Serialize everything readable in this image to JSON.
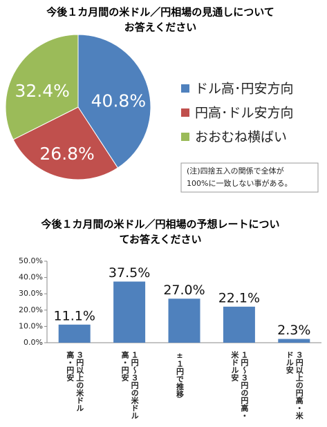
{
  "chart_data": [
    {
      "type": "pie",
      "title": [
        "今後１カ月間の米ドル／円相場の見通しについて",
        "お答えください"
      ],
      "categories": [
        "ドル高･円安方向",
        "円高･ドル安方向",
        "おおむね横ばい"
      ],
      "values": [
        40.8,
        26.8,
        32.4
      ],
      "value_labels": [
        "40.8%",
        "26.8%",
        "32.4%"
      ],
      "colors": [
        "#4f81bd",
        "#c0504d",
        "#9bbb59"
      ],
      "annotations": [
        "(注)四捨五入の関係で全体が",
        "100%に一致しない事がある。"
      ]
    },
    {
      "type": "bar",
      "title": [
        "今後１カ月間の米ドル／円相場の予想レートについ",
        "てお答えください"
      ],
      "categories": [
        "３円以上の米ドル高・円安",
        "１円～３円の米ドル高・円安",
        "±１円で推移",
        "１円～３円の円高・米ドル安",
        "３円以上の円高・米ドル安"
      ],
      "values": [
        11.1,
        37.5,
        27.0,
        22.1,
        2.3
      ],
      "value_labels": [
        "11.1%",
        "37.5%",
        "27.0%",
        "22.1%",
        "2.3%"
      ],
      "color": "#4f81bd",
      "ylim": [
        0,
        50
      ],
      "yticks": [
        {
          "value": 0,
          "label": "0.0%"
        },
        {
          "value": 10,
          "label": "10.0%"
        },
        {
          "value": 20,
          "label": "20.0%"
        },
        {
          "value": 30,
          "label": "30.0%"
        },
        {
          "value": 40,
          "label": "40.0%"
        },
        {
          "value": 50,
          "label": "50.0%"
        }
      ]
    }
  ]
}
